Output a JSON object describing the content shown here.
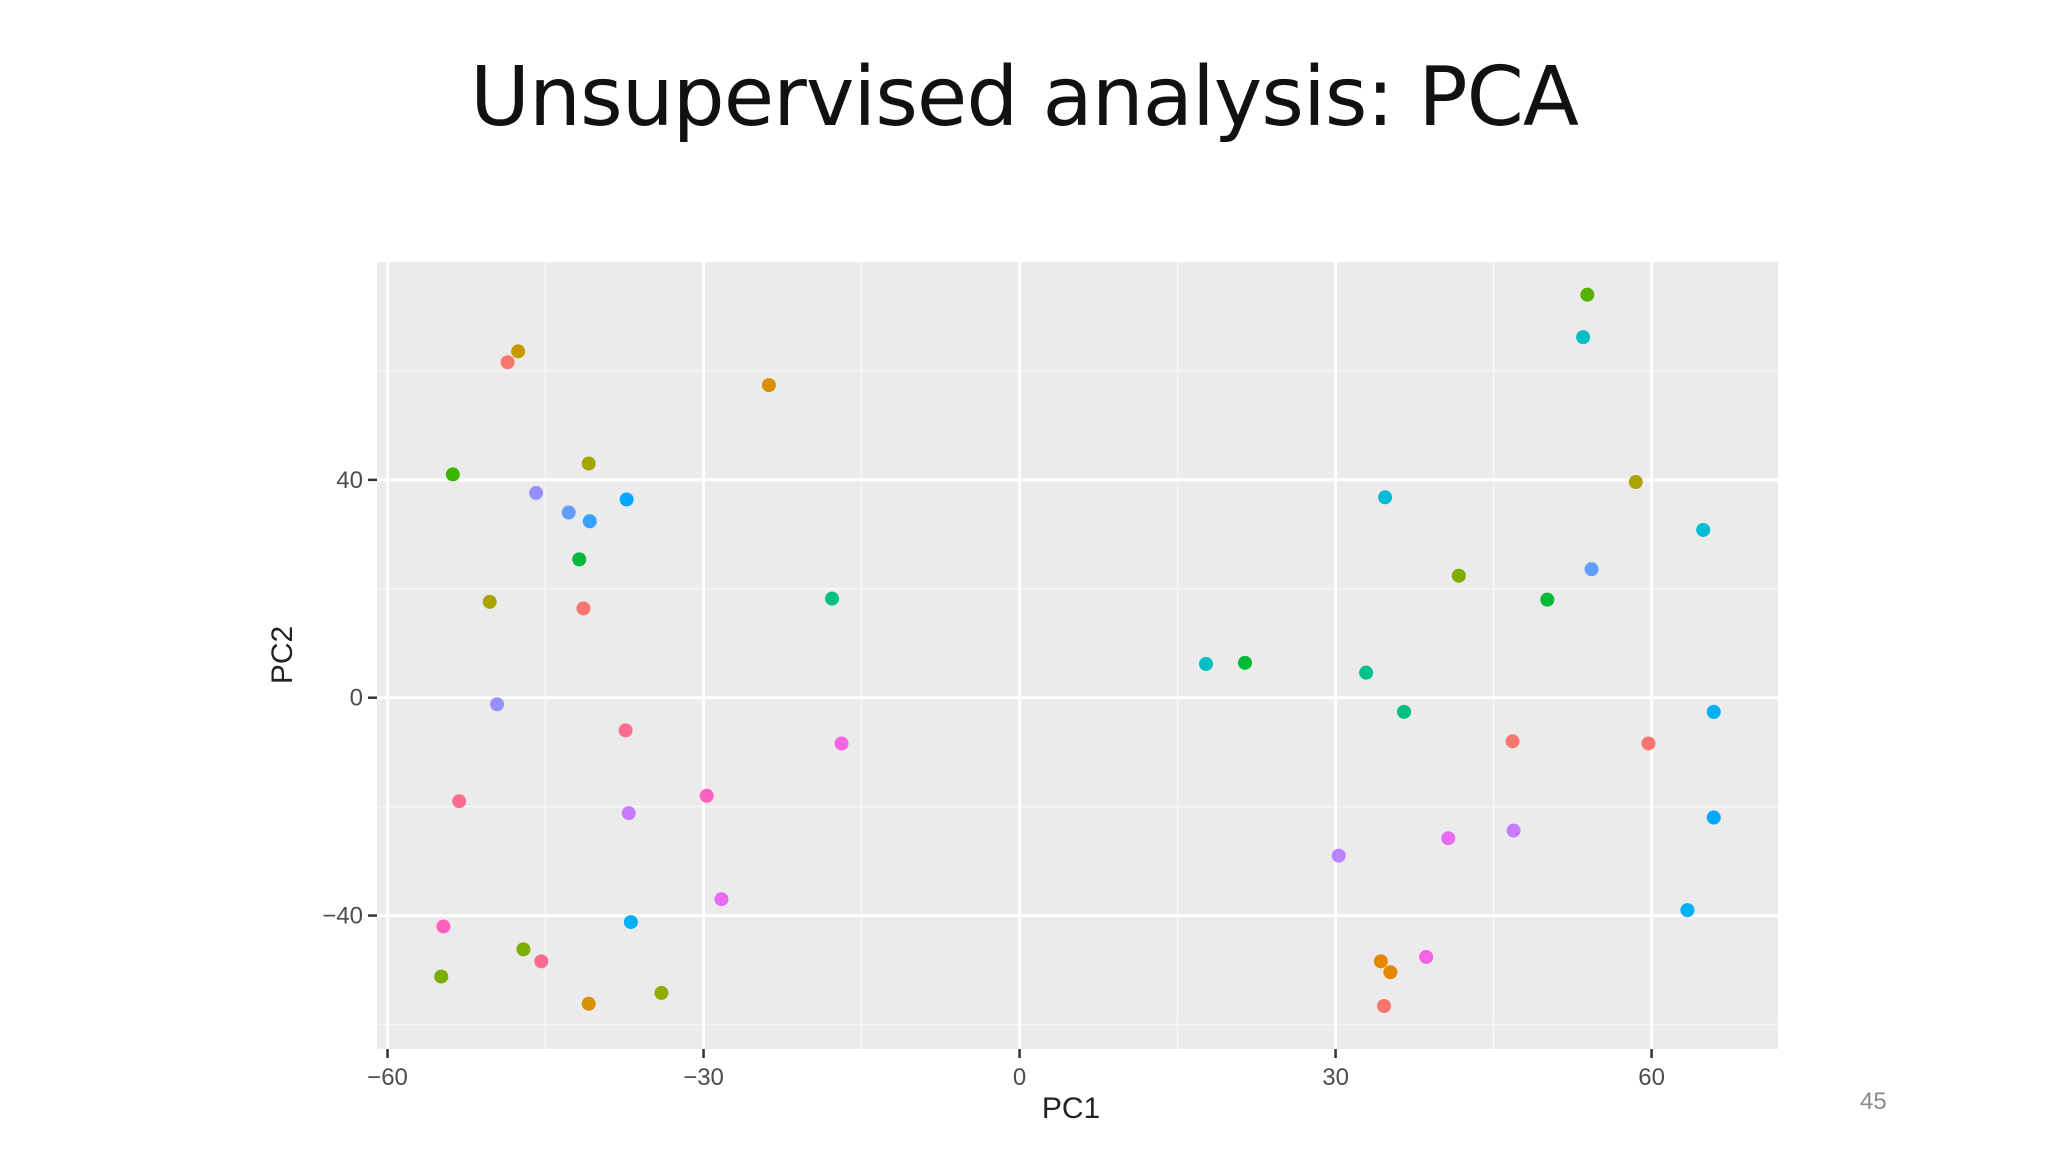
{
  "slide": {
    "title": "Unsupervised analysis: PCA",
    "page_number": "45"
  },
  "chart_data": {
    "type": "scatter",
    "title": "",
    "xlabel": "PC1",
    "ylabel": "PC2",
    "xlim": [
      -61,
      72
    ],
    "ylim": [
      -64.5,
      80
    ],
    "xticks": [
      -60,
      -30,
      0,
      30,
      60
    ],
    "xtick_labels": [
      "−60",
      "−30",
      "0",
      "30",
      "60"
    ],
    "yticks": [
      -40,
      0,
      40
    ],
    "ytick_labels": [
      "−40",
      "0",
      "40"
    ],
    "grid": true,
    "legend": "none",
    "points": [
      {
        "x": -47.6,
        "y": 63.6,
        "color": "#C49A00"
      },
      {
        "x": -48.6,
        "y": 61.6,
        "color": "#F8766D"
      },
      {
        "x": -23.8,
        "y": 57.4,
        "color": "#D89000"
      },
      {
        "x": -53.8,
        "y": 41.0,
        "color": "#39B600"
      },
      {
        "x": -40.9,
        "y": 43.0,
        "color": "#A3A500"
      },
      {
        "x": -45.9,
        "y": 37.6,
        "color": "#9590FF"
      },
      {
        "x": -42.8,
        "y": 34.0,
        "color": "#619CFF"
      },
      {
        "x": -40.8,
        "y": 32.4,
        "color": "#35A2FF"
      },
      {
        "x": -37.3,
        "y": 36.4,
        "color": "#00A9FF"
      },
      {
        "x": -41.8,
        "y": 25.4,
        "color": "#00BA38"
      },
      {
        "x": -50.3,
        "y": 17.6,
        "color": "#ABA300"
      },
      {
        "x": -41.4,
        "y": 16.4,
        "color": "#F8766D"
      },
      {
        "x": -17.8,
        "y": 18.2,
        "color": "#00BF7D"
      },
      {
        "x": -49.6,
        "y": -1.2,
        "color": "#9590FF"
      },
      {
        "x": -37.4,
        "y": -6.0,
        "color": "#FF6C91"
      },
      {
        "x": -16.9,
        "y": -8.4,
        "color": "#F564E3"
      },
      {
        "x": -53.2,
        "y": -19.0,
        "color": "#FF6C91"
      },
      {
        "x": -29.7,
        "y": -18.0,
        "color": "#FF61C3"
      },
      {
        "x": -37.1,
        "y": -21.2,
        "color": "#C77CFF"
      },
      {
        "x": -28.3,
        "y": -37.0,
        "color": "#E76BF3"
      },
      {
        "x": -54.7,
        "y": -42.0,
        "color": "#FF62BC"
      },
      {
        "x": -36.9,
        "y": -41.2,
        "color": "#00B0F6"
      },
      {
        "x": -47.1,
        "y": -46.2,
        "color": "#7CAE00"
      },
      {
        "x": -45.4,
        "y": -48.4,
        "color": "#FF6C91"
      },
      {
        "x": -54.9,
        "y": -51.2,
        "color": "#7CAE00"
      },
      {
        "x": -34.0,
        "y": -54.2,
        "color": "#93AA00"
      },
      {
        "x": -40.9,
        "y": -56.2,
        "color": "#D89000"
      },
      {
        "x": 53.9,
        "y": 74.0,
        "color": "#53B400"
      },
      {
        "x": 53.5,
        "y": 66.2,
        "color": "#00BFC4"
      },
      {
        "x": 58.5,
        "y": 39.6,
        "color": "#ABA300"
      },
      {
        "x": 34.7,
        "y": 36.8,
        "color": "#00BCD8"
      },
      {
        "x": 64.9,
        "y": 30.8,
        "color": "#00BCD8"
      },
      {
        "x": 54.3,
        "y": 23.6,
        "color": "#619CFF"
      },
      {
        "x": 41.7,
        "y": 22.4,
        "color": "#7CAE00"
      },
      {
        "x": 50.1,
        "y": 18.0,
        "color": "#00BA38"
      },
      {
        "x": 17.7,
        "y": 6.2,
        "color": "#00BFC4"
      },
      {
        "x": 21.4,
        "y": 6.4,
        "color": "#00BA38"
      },
      {
        "x": 32.9,
        "y": 4.6,
        "color": "#00C08B"
      },
      {
        "x": 36.5,
        "y": -2.6,
        "color": "#00BF7D"
      },
      {
        "x": 46.8,
        "y": -8.0,
        "color": "#F8766D"
      },
      {
        "x": 59.7,
        "y": -8.4,
        "color": "#F8766D"
      },
      {
        "x": 65.9,
        "y": -2.6,
        "color": "#00B0F6"
      },
      {
        "x": 65.9,
        "y": -22.0,
        "color": "#00A9FF"
      },
      {
        "x": 40.7,
        "y": -25.8,
        "color": "#E76BF3"
      },
      {
        "x": 46.9,
        "y": -24.4,
        "color": "#C77CFF"
      },
      {
        "x": 30.3,
        "y": -29.0,
        "color": "#B983FF"
      },
      {
        "x": 63.4,
        "y": -39.0,
        "color": "#00B0F6"
      },
      {
        "x": 38.6,
        "y": -47.6,
        "color": "#F564E3"
      },
      {
        "x": 34.3,
        "y": -48.4,
        "color": "#E58700"
      },
      {
        "x": 35.2,
        "y": -50.4,
        "color": "#E58700"
      },
      {
        "x": 34.6,
        "y": -56.6,
        "color": "#F8766D"
      }
    ]
  }
}
